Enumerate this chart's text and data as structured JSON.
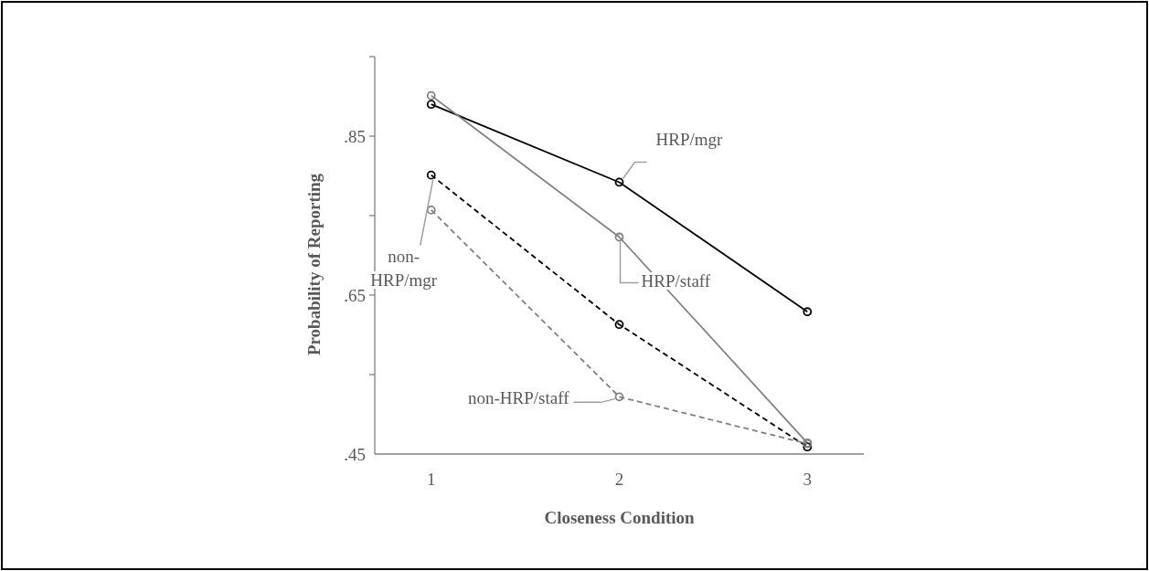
{
  "chart_data": {
    "type": "line",
    "xlabel": "Closeness Condition",
    "ylabel": "Probability of Reporting",
    "x": [
      1,
      2,
      3
    ],
    "xlim": [
      0.7,
      3.3
    ],
    "xticks": [
      1,
      2,
      3
    ],
    "ylim": [
      0.45,
      0.95
    ],
    "yticks": [
      {
        "value": 0.45,
        "label": ".45"
      },
      {
        "value": 0.55,
        "label": null
      },
      {
        "value": 0.65,
        "label": ".65"
      },
      {
        "value": 0.75,
        "label": null
      },
      {
        "value": 0.85,
        "label": ".85"
      },
      {
        "value": 0.95,
        "label": null
      }
    ],
    "grid": false,
    "marker": "circle",
    "series": [
      {
        "name": "HRP/mgr",
        "color": "#000000",
        "line_style": "solid",
        "values": [
          0.89,
          0.792,
          0.629
        ]
      },
      {
        "name": "HRP/staff",
        "color": "#808080",
        "line_style": "solid",
        "values": [
          0.901,
          0.723,
          0.464
        ]
      },
      {
        "name": "non-HRP/mgr",
        "color": "#000000",
        "line_style": "dashed",
        "values": [
          0.801,
          0.613,
          0.459
        ]
      },
      {
        "name": "non-HRP/staff",
        "color": "#808080",
        "line_style": "dashed",
        "values": [
          0.757,
          0.522,
          0.463
        ]
      }
    ]
  }
}
